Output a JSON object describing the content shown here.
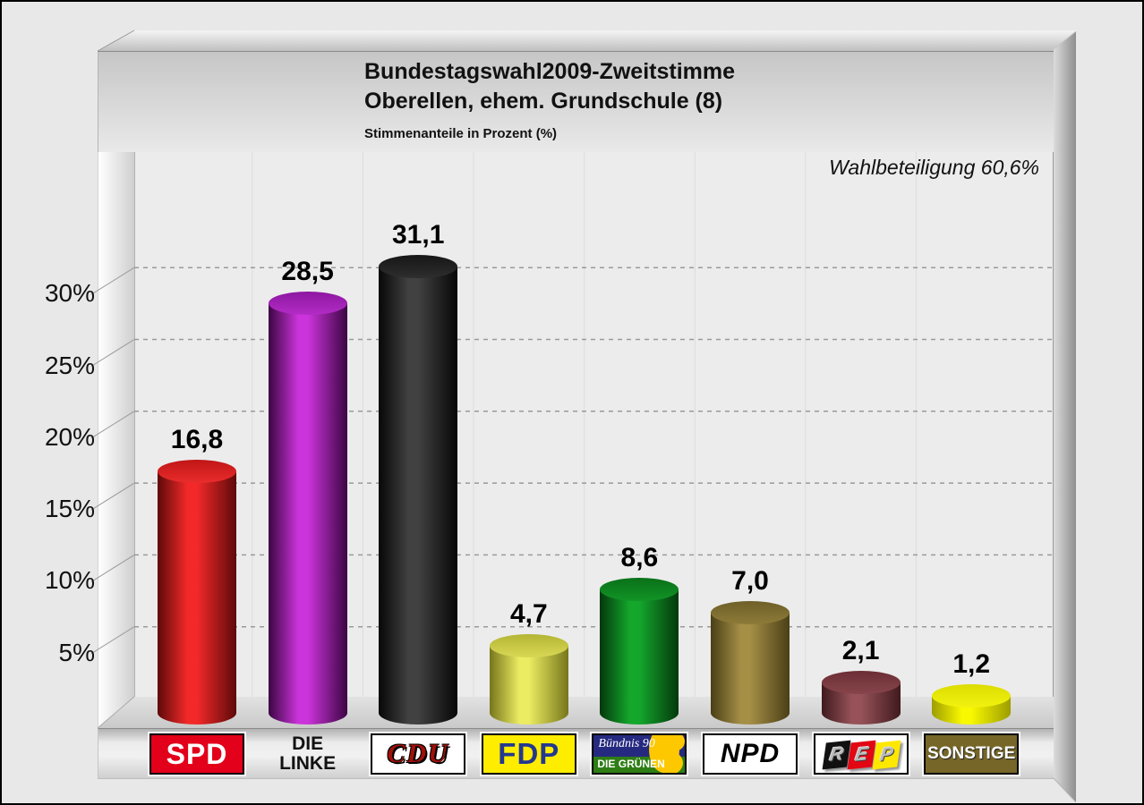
{
  "header": {
    "title_line1": "Bundestagswahl2009-Zweitstimme",
    "title_line2": "Oberellen, ehem. Grundschule (8)",
    "subtitle": "Stimmenanteile in Prozent (%)"
  },
  "turnout_label": "Wahlbeteiligung 60,6%",
  "chart_data": {
    "type": "bar",
    "style": "3d-cylinder",
    "title": "Bundestagswahl2009-Zweitstimme Oberellen, ehem. Grundschule (8)",
    "ylabel": "Stimmenanteile in Prozent (%)",
    "ylim": [
      0,
      35
    ],
    "grid": "horizontal dashed every 5%",
    "legend_position": "bottom",
    "categories": [
      "SPD",
      "DIE LINKE",
      "CDU",
      "FDP",
      "BÜNDNIS 90/DIE GRÜNEN",
      "NPD",
      "REP",
      "SONSTIGE"
    ],
    "values": [
      16.8,
      28.5,
      31.1,
      4.7,
      8.6,
      7.0,
      2.1,
      1.2
    ],
    "value_labels": [
      "16,8",
      "28,5",
      "31,1",
      "4,7",
      "8,6",
      "7,0",
      "2,1",
      "1,2"
    ],
    "y_ticks": [
      {
        "label": "5%",
        "value": 5
      },
      {
        "label": "10%",
        "value": 10
      },
      {
        "label": "15%",
        "value": 15
      },
      {
        "label": "20%",
        "value": 20
      },
      {
        "label": "25%",
        "value": 25
      },
      {
        "label": "30%",
        "value": 30
      }
    ],
    "bars": [
      {
        "id": "spd",
        "value": 16.8,
        "value_label": "16,8",
        "color": {
          "edge": "#5e0909",
          "bright": "#f32929",
          "cap_dark": "#c01616",
          "cap_light": "#ea2c2c"
        },
        "legend": {
          "type": "box",
          "label": "SPD",
          "bg": "#e2001a",
          "class": "spd-label"
        }
      },
      {
        "id": "linke",
        "value": 28.5,
        "value_label": "28,5",
        "color": {
          "edge": "#3c0543",
          "bright": "#cb34da",
          "cap_dark": "#8d17a0",
          "cap_light": "#b32cc6"
        },
        "legend": {
          "type": "text",
          "lines": [
            "DIE",
            "LINKE"
          ]
        }
      },
      {
        "id": "cdu",
        "value": 31.1,
        "value_label": "31,1",
        "color": {
          "edge": "#070707",
          "bright": "#414141",
          "cap_dark": "#161616",
          "cap_light": "#2e2e2e"
        },
        "legend": {
          "type": "box",
          "label": "CDU",
          "bg": "#ffffff",
          "class": "cdu-label"
        }
      },
      {
        "id": "fdp",
        "value": 4.7,
        "value_label": "4,7",
        "color": {
          "edge": "#76761c",
          "bright": "#ecec62",
          "cap_dark": "#b5b535",
          "cap_light": "#d8d855"
        },
        "legend": {
          "type": "box",
          "label": "FDP",
          "bg": "#ffed00",
          "class": "fdp-label"
        }
      },
      {
        "id": "gruene",
        "value": 8.6,
        "value_label": "8,6",
        "color": {
          "edge": "#04380c",
          "bright": "#14a72c",
          "cap_dark": "#0a7018",
          "cap_light": "#129426"
        },
        "legend": {
          "type": "gruene",
          "line1": "Bündnis 90",
          "line2": "DIE GRÜNEN",
          "blue": "#252a80",
          "green": "#2e7d15",
          "sunflower": "#fdc800"
        }
      },
      {
        "id": "npd",
        "value": 7.0,
        "value_label": "7,0",
        "color": {
          "edge": "#4a3f16",
          "bright": "#a58f46",
          "cap_dark": "#6e5f28",
          "cap_light": "#8d7b38"
        },
        "legend": {
          "type": "box",
          "label": "NPD",
          "bg": "#ffffff",
          "class": "npd-label"
        }
      },
      {
        "id": "rep",
        "value": 2.1,
        "value_label": "2,1",
        "color": {
          "edge": "#3f1a1e",
          "bright": "#965258",
          "cap_dark": "#6b2e34",
          "cap_light": "#86454b"
        },
        "legend": {
          "type": "rep",
          "letters": [
            "R",
            "E",
            "P"
          ],
          "tile_colors": [
            "#111111",
            "#e30613",
            "#ffe800"
          ]
        }
      },
      {
        "id": "sonstige",
        "value": 1.2,
        "value_label": "1,2",
        "color": {
          "edge": "#9d9d00",
          "bright": "#f8f800",
          "cap_dark": "#dcdc00",
          "cap_light": "#f2f210"
        },
        "legend": {
          "type": "box",
          "label": "SONSTIGE",
          "bg": "#766628",
          "class": "sonstige-label"
        }
      }
    ]
  }
}
